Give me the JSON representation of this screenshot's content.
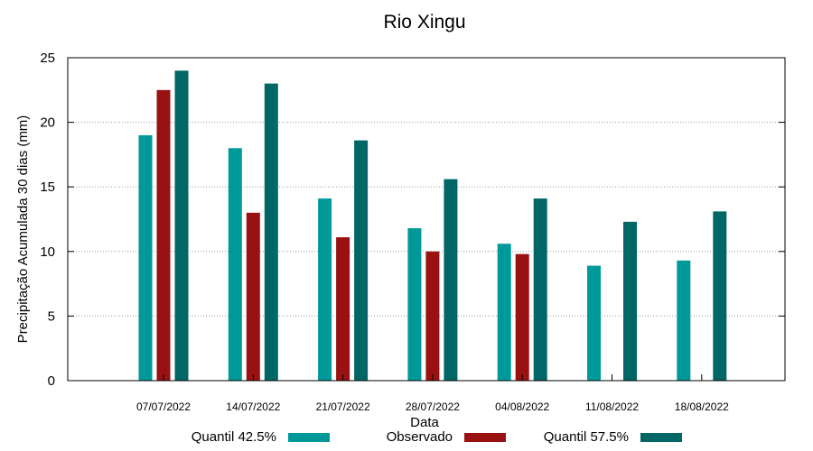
{
  "chart_data": {
    "type": "bar",
    "title": "Rio Xingu",
    "xlabel": "Data",
    "ylabel": "Precipitação Acumulada 30 dias (mm)",
    "ylim": [
      0,
      25
    ],
    "yticks": [
      "0",
      "5",
      "10",
      "15",
      "20",
      "25"
    ],
    "grid": true,
    "legend_position": "bottom",
    "categories": [
      "07/07/2022",
      "14/07/2022",
      "21/07/2022",
      "28/07/2022",
      "04/08/2022",
      "11/08/2022",
      "18/08/2022"
    ],
    "series": [
      {
        "name": "Quantil 42.5%",
        "color": "#009999",
        "values": [
          19.0,
          18.0,
          14.1,
          11.8,
          10.6,
          8.9,
          9.3
        ]
      },
      {
        "name": "Observado",
        "color": "#991111",
        "values": [
          22.5,
          13.0,
          11.1,
          10.0,
          9.8,
          null,
          null
        ]
      },
      {
        "name": "Quantil 57.5%",
        "color": "#006666",
        "values": [
          24.0,
          23.0,
          18.6,
          15.6,
          14.1,
          12.3,
          13.1
        ]
      }
    ]
  }
}
